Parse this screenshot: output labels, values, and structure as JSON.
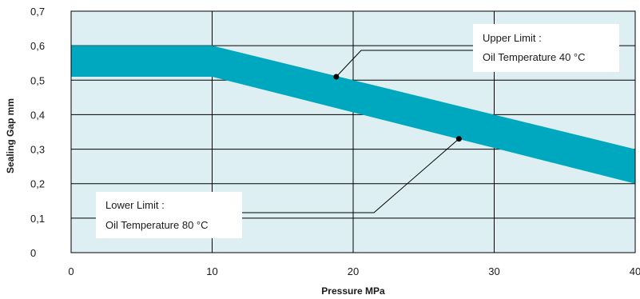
{
  "chart_data": {
    "type": "area",
    "xlabel": "Pressure MPa",
    "ylabel": "Sealing Gap mm",
    "xlim": [
      0,
      40
    ],
    "ylim": [
      0,
      0.7
    ],
    "x_ticks": [
      "0",
      "10",
      "20",
      "30",
      "40"
    ],
    "y_ticks": [
      "0",
      "0,1",
      "0,2",
      "0,3",
      "0,4",
      "0,5",
      "0,6",
      "0,7"
    ],
    "grid": true,
    "band": {
      "upper": [
        {
          "x": 0,
          "y": 0.6
        },
        {
          "x": 10,
          "y": 0.6
        },
        {
          "x": 40,
          "y": 0.3
        }
      ],
      "lower": [
        {
          "x": 0,
          "y": 0.51
        },
        {
          "x": 10,
          "y": 0.51
        },
        {
          "x": 40,
          "y": 0.2
        }
      ]
    },
    "annotations": [
      {
        "line1": "Upper Limit :",
        "line2": "Oil Temperature 40 °C",
        "point": {
          "x": 18.8,
          "y": 0.51
        }
      },
      {
        "line1": "Lower Limit :",
        "line2": "Oil Temperature 80 °C",
        "point": {
          "x": 27.5,
          "y": 0.33
        }
      }
    ],
    "colors": {
      "band": "#00a8bf",
      "plot_bg": "#deeff3",
      "grid": "#000000"
    }
  }
}
